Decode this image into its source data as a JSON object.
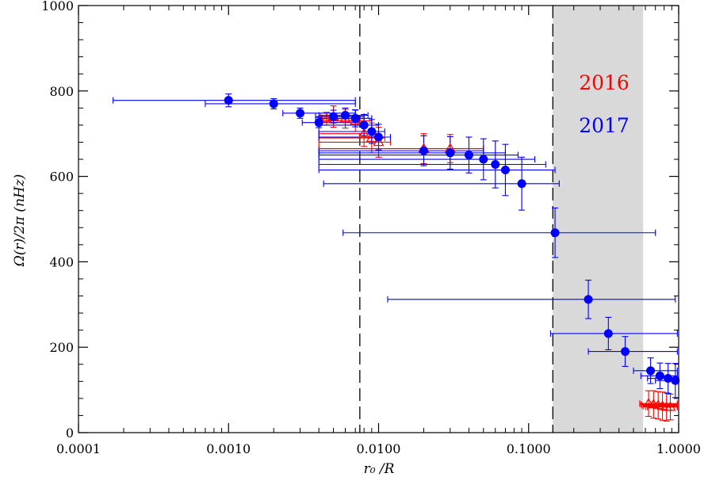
{
  "chart_data": {
    "type": "scatter",
    "xlabel": "r₀ /R",
    "ylabel": "Ω(r)/2π (nHz)",
    "x_scale": "log",
    "xlim": [
      0.0001,
      1.0
    ],
    "ylim": [
      0,
      1000
    ],
    "x_ticks": [
      {
        "value": 0.0001,
        "label": "0.0001"
      },
      {
        "value": 0.001,
        "label": "0.0010"
      },
      {
        "value": 0.01,
        "label": "0.0100"
      },
      {
        "value": 0.1,
        "label": "0.1000"
      },
      {
        "value": 1.0,
        "label": "1.0000"
      }
    ],
    "y_ticks": [
      {
        "value": 0,
        "label": "0"
      },
      {
        "value": 200,
        "label": "200"
      },
      {
        "value": 400,
        "label": "400"
      },
      {
        "value": 600,
        "label": "600"
      },
      {
        "value": 800,
        "label": "800"
      },
      {
        "value": 1000,
        "label": "1000"
      }
    ],
    "grid": false,
    "shaded_region": {
      "x": [
        0.145,
        0.58
      ],
      "color": "#d9d9d9"
    },
    "reference_lines": [
      {
        "x": 0.0075
      },
      {
        "x": 0.145
      }
    ],
    "legend": {
      "placement": "top-right",
      "entries": [
        {
          "label": "2016",
          "color": "#ff0000"
        },
        {
          "label": "2017",
          "color": "#0000ff"
        }
      ]
    },
    "series": [
      {
        "name": "2016",
        "color": "#ff0000",
        "marker": "triangle",
        "points": [
          {
            "x": 0.0045,
            "y": 735,
            "yerr": 15,
            "xlo": 0.004,
            "xhi": 0.0053
          },
          {
            "x": 0.005,
            "y": 740,
            "yerr": 25,
            "xlo": 0.0041,
            "xhi": 0.007
          },
          {
            "x": 0.006,
            "y": 735,
            "yerr": 22,
            "xlo": 0.0042,
            "xhi": 0.008
          },
          {
            "x": 0.007,
            "y": 730,
            "yerr": 25,
            "xlo": 0.004,
            "xhi": 0.009
          },
          {
            "x": 0.008,
            "y": 700,
            "yerr": 30,
            "xlo": 0.004,
            "xhi": 0.01
          },
          {
            "x": 0.009,
            "y": 690,
            "yerr": 35,
            "xlo": 0.004,
            "xhi": 0.011
          },
          {
            "x": 0.01,
            "y": 680,
            "yerr": 35,
            "xlo": 0.004,
            "xhi": 0.012
          },
          {
            "x": 0.02,
            "y": 665,
            "yerr": 35,
            "xlo": 0.004,
            "xhi": 0.05
          },
          {
            "x": 0.03,
            "y": 665,
            "yerr": 33,
            "xlo": 0.004,
            "xhi": 0.05
          },
          {
            "x": 0.63,
            "y": 68,
            "yerr": 30,
            "xlo": 0.55,
            "xhi": 0.98
          },
          {
            "x": 0.68,
            "y": 66,
            "yerr": 32,
            "xlo": 0.56,
            "xhi": 0.98
          },
          {
            "x": 0.73,
            "y": 64,
            "yerr": 32,
            "xlo": 0.57,
            "xhi": 0.98
          },
          {
            "x": 0.78,
            "y": 62,
            "yerr": 33,
            "xlo": 0.58,
            "xhi": 0.98
          },
          {
            "x": 0.83,
            "y": 60,
            "yerr": 33,
            "xlo": 0.6,
            "xhi": 0.98
          },
          {
            "x": 0.88,
            "y": 60,
            "yerr": 30,
            "xlo": 0.62,
            "xhi": 0.98
          }
        ]
      },
      {
        "name": "2017",
        "color": "#0000ff",
        "marker": "circle",
        "points": [
          {
            "x": 0.001,
            "y": 778,
            "yerr": 15,
            "xlo": 0.00017,
            "xhi": 0.007
          },
          {
            "x": 0.002,
            "y": 770,
            "yerr": 12,
            "xlo": 0.0007,
            "xhi": 0.007
          },
          {
            "x": 0.003,
            "y": 748,
            "yerr": 12,
            "xlo": 0.0023,
            "xhi": 0.007
          },
          {
            "x": 0.004,
            "y": 726,
            "yerr": 12,
            "xlo": 0.0031,
            "xhi": 0.0073
          },
          {
            "x": 0.005,
            "y": 740,
            "yerr": 15,
            "xlo": 0.0038,
            "xhi": 0.008
          },
          {
            "x": 0.006,
            "y": 743,
            "yerr": 17,
            "xlo": 0.004,
            "xhi": 0.0085
          },
          {
            "x": 0.007,
            "y": 736,
            "yerr": 20,
            "xlo": 0.004,
            "xhi": 0.009
          },
          {
            "x": 0.008,
            "y": 720,
            "yerr": 25,
            "xlo": 0.004,
            "xhi": 0.01
          },
          {
            "x": 0.009,
            "y": 705,
            "yerr": 28,
            "xlo": 0.004,
            "xhi": 0.011
          },
          {
            "x": 0.01,
            "y": 692,
            "yerr": 30,
            "xlo": 0.004,
            "xhi": 0.012
          },
          {
            "x": 0.02,
            "y": 660,
            "yerr": 35,
            "xlo": 0.004,
            "xhi": 0.05
          },
          {
            "x": 0.03,
            "y": 655,
            "yerr": 38,
            "xlo": 0.004,
            "xhi": 0.07
          },
          {
            "x": 0.04,
            "y": 650,
            "yerr": 42,
            "xlo": 0.004,
            "xhi": 0.085
          },
          {
            "x": 0.05,
            "y": 640,
            "yerr": 48,
            "xlo": 0.004,
            "xhi": 0.11
          },
          {
            "x": 0.06,
            "y": 628,
            "yerr": 55,
            "xlo": 0.004,
            "xhi": 0.13
          },
          {
            "x": 0.07,
            "y": 615,
            "yerr": 60,
            "xlo": 0.004,
            "xhi": 0.15
          },
          {
            "x": 0.09,
            "y": 583,
            "yerr": 62,
            "xlo": 0.0043,
            "xhi": 0.16
          },
          {
            "x": 0.15,
            "y": 468,
            "yerr": 58,
            "xlo": 0.0058,
            "xhi": 0.7
          },
          {
            "x": 0.25,
            "y": 312,
            "yerr": 45,
            "xlo": 0.0115,
            "xhi": 0.95
          },
          {
            "x": 0.34,
            "y": 232,
            "yerr": 38,
            "xlo": 0.14,
            "xhi": 0.98
          },
          {
            "x": 0.44,
            "y": 190,
            "yerr": 35,
            "xlo": 0.25,
            "xhi": 0.98
          },
          {
            "x": 0.65,
            "y": 145,
            "yerr": 30,
            "xlo": 0.5,
            "xhi": 0.98
          },
          {
            "x": 0.75,
            "y": 133,
            "yerr": 30,
            "xlo": 0.56,
            "xhi": 0.98
          },
          {
            "x": 0.85,
            "y": 127,
            "yerr": 35,
            "xlo": 0.62,
            "xhi": 0.98
          },
          {
            "x": 0.95,
            "y": 122,
            "yerr": 40,
            "xlo": 0.7,
            "xhi": 0.99
          }
        ]
      }
    ]
  }
}
